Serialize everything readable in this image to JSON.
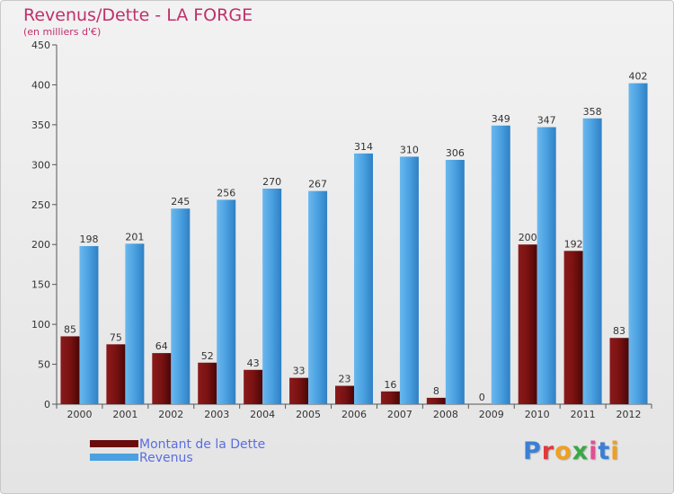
{
  "header": {
    "title": "Revenus/Dette - LA FORGE",
    "subtitle": "(en milliers d'€)"
  },
  "logo": {
    "text": "Proxiti",
    "colors": [
      "#3a7fd6",
      "#e03a3a",
      "#f0a020",
      "#39a845",
      "#e05090",
      "#3a7fd6",
      "#f0a020"
    ]
  },
  "colors": {
    "title": "#c0306a",
    "debt": "#7a1010",
    "revenue": "#4aa0e0",
    "legend_text": "#5a6de0"
  },
  "chart_data": {
    "type": "bar",
    "title": "Revenus/Dette - LA FORGE",
    "subtitle": "(en milliers d'€)",
    "categories": [
      "2000",
      "2001",
      "2002",
      "2003",
      "2004",
      "2005",
      "2006",
      "2007",
      "2008",
      "2009",
      "2010",
      "2011",
      "2012"
    ],
    "series": [
      {
        "name": "Montant de la Dette",
        "values": [
          85,
          75,
          64,
          52,
          43,
          33,
          23,
          16,
          8,
          0,
          200,
          192,
          83
        ]
      },
      {
        "name": "Revenus",
        "values": [
          198,
          201,
          245,
          256,
          270,
          267,
          314,
          310,
          306,
          349,
          347,
          358,
          402
        ]
      }
    ],
    "ylim": [
      0,
      450
    ],
    "yticks": [
      0,
      50,
      100,
      150,
      200,
      250,
      300,
      350,
      400,
      450
    ],
    "grid": false,
    "legend_position": "bottom-left"
  }
}
